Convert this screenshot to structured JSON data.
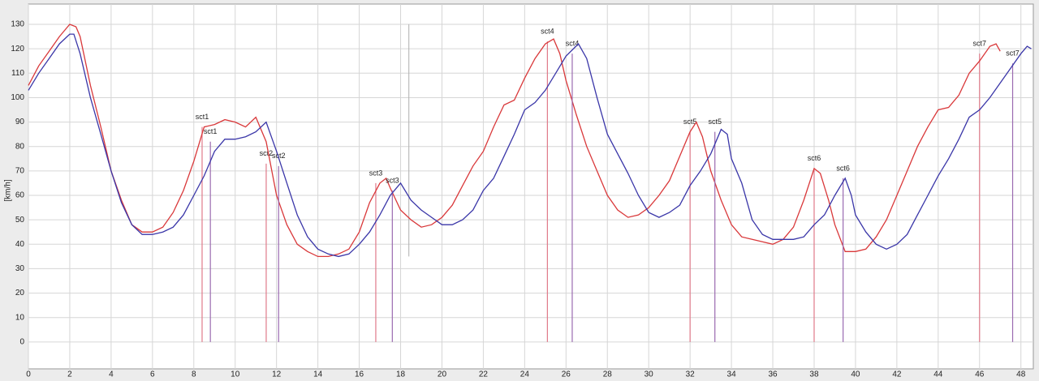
{
  "chart_data": {
    "type": "line",
    "y_label": "[km/h]",
    "xlim": [
      0,
      48.6
    ],
    "ylim": [
      -11,
      138.3
    ],
    "xticks": [
      0,
      2,
      4,
      6,
      8,
      10,
      12,
      14,
      16,
      18,
      20,
      22,
      24,
      26,
      28,
      30,
      32,
      34,
      36,
      38,
      40,
      42,
      44,
      46,
      48
    ],
    "yticks": [
      0,
      10,
      20,
      30,
      40,
      50,
      60,
      70,
      80,
      90,
      100,
      110,
      120,
      130
    ],
    "grid": true,
    "cursor": {
      "x": 18.4,
      "values": [
        35,
        130
      ],
      "color": "#b0b0b0"
    },
    "series": [
      {
        "color": "#d9383a",
        "marker_color": "#e07a8a",
        "x": [
          0,
          0.5,
          1,
          1.5,
          2,
          2.3,
          2.5,
          3,
          3.5,
          4,
          4.5,
          5,
          5.5,
          6,
          6.5,
          7,
          7.5,
          8,
          8.5,
          9,
          9.5,
          10,
          10.5,
          11,
          11.5,
          12,
          12.5,
          13,
          13.5,
          14,
          14.5,
          15,
          15.5,
          16,
          16.5,
          17,
          17.3,
          17.5,
          18,
          18.5,
          19,
          19.5,
          20,
          20.5,
          21,
          21.5,
          22,
          22.5,
          23,
          23.5,
          24,
          24.5,
          25,
          25.4,
          25.7,
          26,
          26.5,
          27,
          27.5,
          28,
          28.5,
          29,
          29.5,
          30,
          30.5,
          31,
          31.5,
          32,
          32.3,
          32.6,
          33,
          33.5,
          34,
          34.5,
          35,
          35.5,
          36,
          36.5,
          37,
          37.5,
          38,
          38.3,
          38.7,
          39,
          39.5,
          40,
          40.5,
          41,
          41.5,
          42,
          42.5,
          43,
          43.5,
          44,
          44.5,
          45,
          45.5,
          46,
          46.5,
          46.8,
          47
        ],
        "values": [
          105,
          113,
          119,
          125,
          130,
          129,
          125,
          105,
          88,
          70,
          58,
          48,
          45,
          45,
          47,
          53,
          62,
          74,
          88,
          89,
          91,
          90,
          88,
          92,
          82,
          60,
          48,
          40,
          37,
          35,
          35,
          36,
          38,
          45,
          57,
          65,
          67,
          63,
          54,
          50,
          47,
          48,
          51,
          56,
          64,
          72,
          78,
          88,
          97,
          99,
          108,
          116,
          122,
          124,
          118,
          107,
          93,
          80,
          70,
          60,
          54,
          51,
          52,
          55,
          60,
          66,
          76,
          86,
          90,
          84,
          70,
          58,
          48,
          43,
          42,
          41,
          40,
          42,
          47,
          58,
          71,
          69,
          58,
          48,
          37,
          37,
          38,
          43,
          50,
          60,
          70,
          80,
          88,
          95,
          96,
          101,
          110,
          115,
          121,
          122,
          119
        ],
        "markers": [
          {
            "label": "sct1",
            "x": 8.4,
            "value": 88
          },
          {
            "label": "sct2",
            "x": 11.5,
            "value": 73
          },
          {
            "label": "sct3",
            "x": 16.8,
            "value": 65
          },
          {
            "label": "sct4",
            "x": 25.1,
            "value": 123
          },
          {
            "label": "sct5",
            "x": 32.0,
            "value": 86
          },
          {
            "label": "sct6",
            "x": 38.0,
            "value": 71
          },
          {
            "label": "sct7",
            "x": 46.0,
            "value": 118
          }
        ]
      },
      {
        "color": "#3a36a8",
        "marker_color": "#9a6ab0",
        "x": [
          0,
          0.5,
          1,
          1.5,
          2,
          2.2,
          2.5,
          3,
          3.5,
          4,
          4.5,
          5,
          5.5,
          6,
          6.5,
          7,
          7.5,
          8,
          8.5,
          9,
          9.5,
          10,
          10.5,
          11,
          11.5,
          12,
          12.5,
          13,
          13.5,
          14,
          14.5,
          15,
          15.5,
          16,
          16.5,
          17,
          17.5,
          18,
          18.5,
          19,
          19.5,
          20,
          20.5,
          21,
          21.5,
          22,
          22.5,
          23,
          23.5,
          24,
          24.5,
          25,
          25.5,
          26,
          26.6,
          27,
          27.5,
          28,
          28.5,
          29,
          29.5,
          30,
          30.5,
          31,
          31.5,
          32,
          32.5,
          33,
          33.5,
          33.8,
          34,
          34.5,
          35,
          35.5,
          36,
          36.5,
          37,
          37.5,
          38,
          38.5,
          39,
          39.5,
          39.8,
          40,
          40.5,
          41,
          41.5,
          42,
          42.5,
          43,
          43.5,
          44,
          44.5,
          45,
          45.5,
          46,
          46.5,
          47,
          47.5,
          48,
          48.3,
          48.5
        ],
        "values": [
          103,
          110,
          116,
          122,
          126,
          126,
          118,
          100,
          85,
          70,
          57,
          48,
          44,
          44,
          45,
          47,
          52,
          60,
          68,
          78,
          83,
          83,
          84,
          86,
          90,
          78,
          65,
          52,
          43,
          38,
          36,
          35,
          36,
          40,
          45,
          52,
          60,
          65,
          58,
          54,
          51,
          48,
          48,
          50,
          54,
          62,
          67,
          76,
          85,
          95,
          98,
          103,
          110,
          117,
          122,
          116,
          100,
          85,
          77,
          69,
          60,
          53,
          51,
          53,
          56,
          64,
          70,
          77,
          87,
          85,
          75,
          65,
          50,
          44,
          42,
          42,
          42,
          43,
          48,
          52,
          60,
          67,
          60,
          52,
          45,
          40,
          38,
          40,
          44,
          52,
          60,
          68,
          75,
          83,
          92,
          95,
          100,
          106,
          112,
          118,
          121,
          120
        ],
        "markers": [
          {
            "label": "sct1",
            "x": 8.8,
            "value": 82
          },
          {
            "label": "sct2",
            "x": 12.1,
            "value": 72
          },
          {
            "label": "sct3",
            "x": 17.6,
            "value": 62
          },
          {
            "label": "sct4",
            "x": 26.3,
            "value": 118
          },
          {
            "label": "sct5",
            "x": 33.2,
            "value": 86
          },
          {
            "label": "sct6",
            "x": 39.4,
            "value": 67
          },
          {
            "label": "sct7",
            "x": 47.6,
            "value": 114
          }
        ]
      }
    ]
  }
}
